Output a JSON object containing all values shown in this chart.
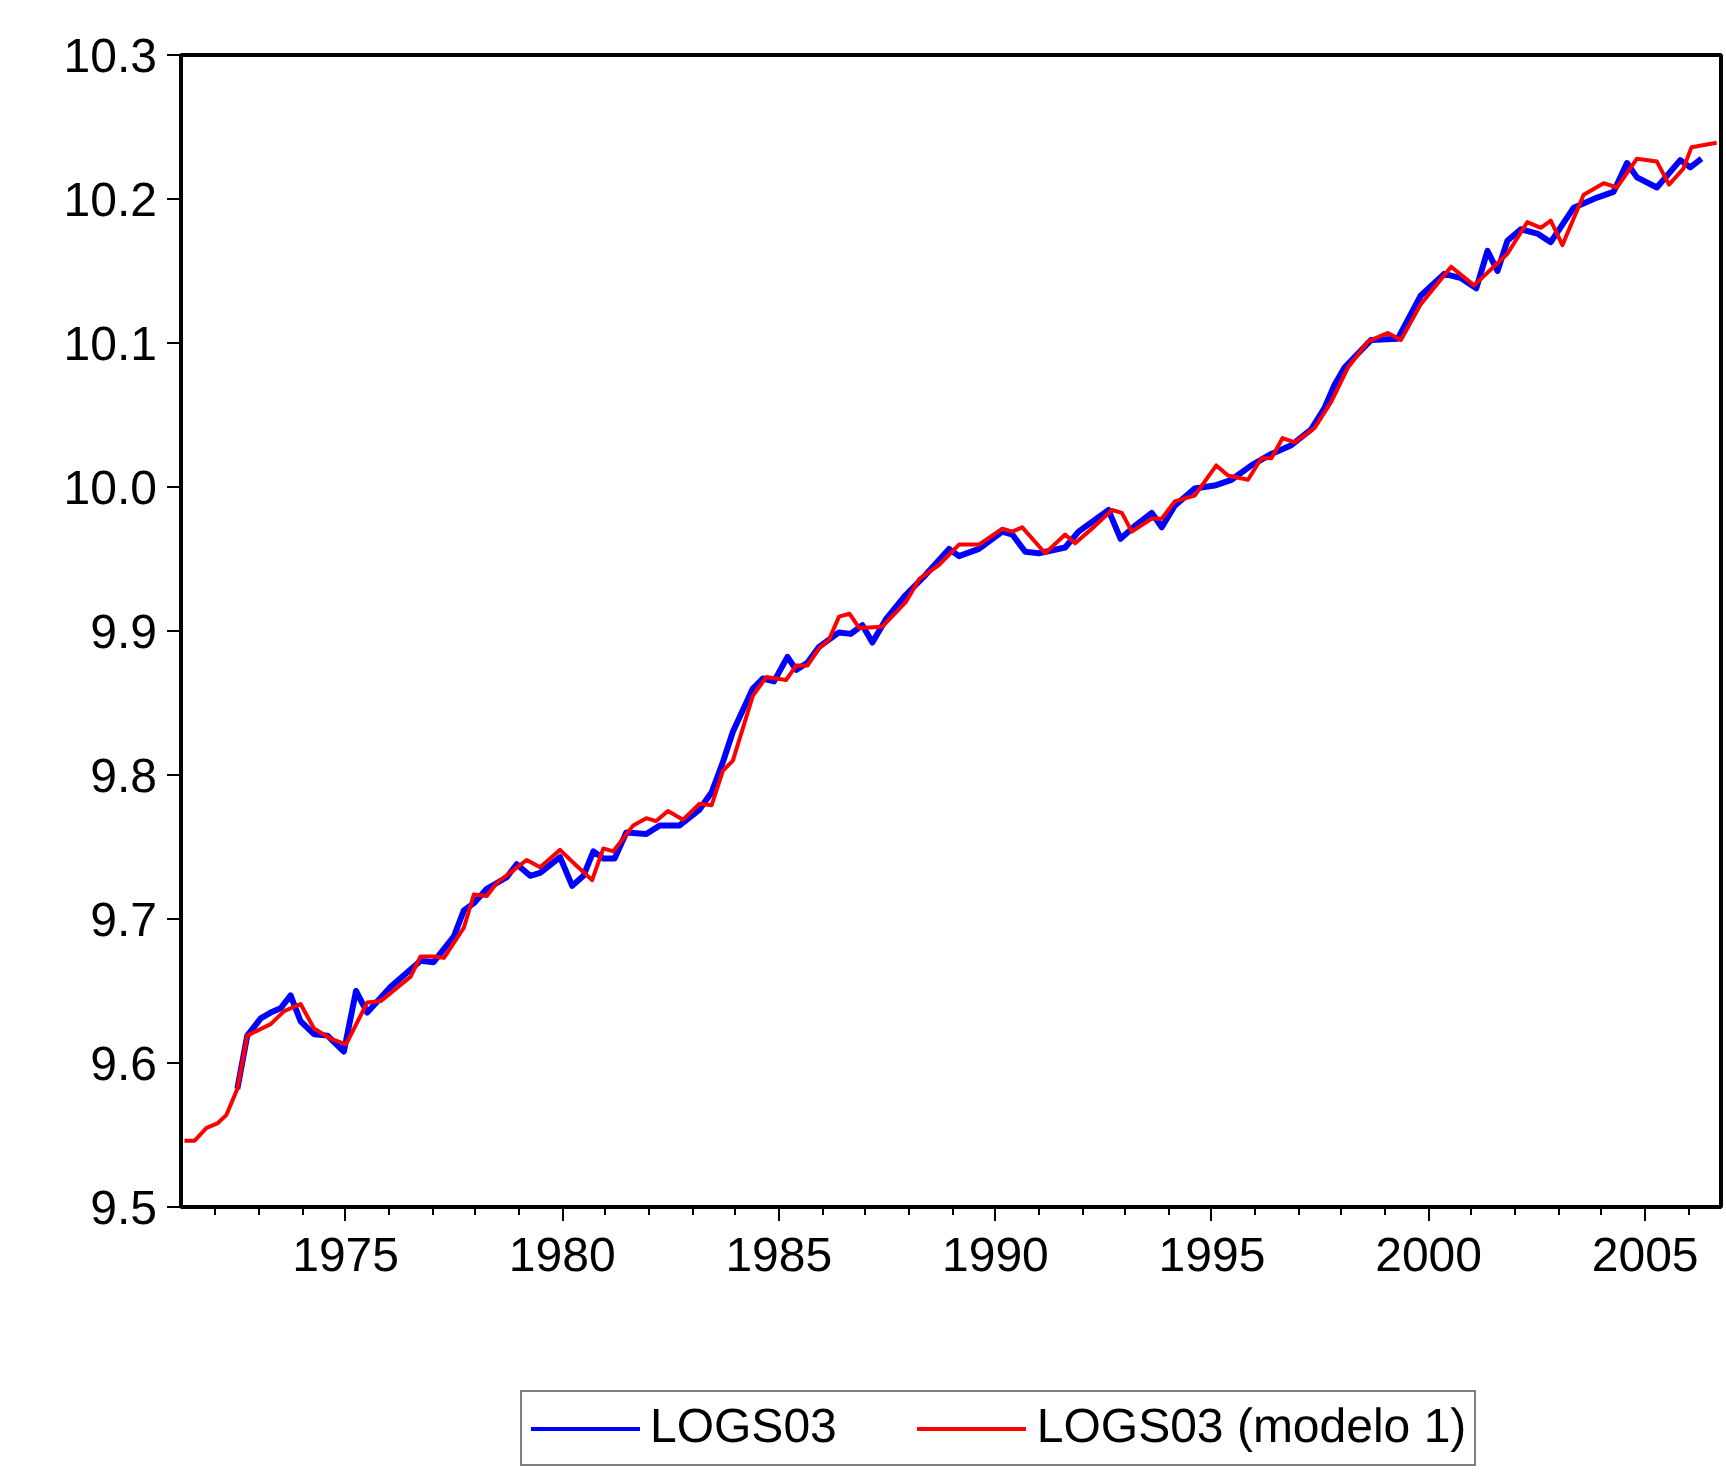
{
  "chart_data": {
    "type": "line",
    "xlim": [
      1971.2,
      2006.75
    ],
    "xticks": [
      1975,
      1980,
      1985,
      1990,
      1995,
      2000,
      2005
    ],
    "ylim": [
      9.5,
      10.3
    ],
    "yticks": [
      {
        "value": 9.5,
        "label": "9.5"
      },
      {
        "value": 9.6,
        "label": "9.6"
      },
      {
        "value": 9.7,
        "label": "9.7"
      },
      {
        "value": 9.8,
        "label": "9.8"
      },
      {
        "value": 9.9,
        "label": "9.9"
      },
      {
        "value": 10.0,
        "label": "10.0"
      },
      {
        "value": 10.1,
        "label": "10.1"
      },
      {
        "value": 10.2,
        "label": "10.2"
      },
      {
        "value": 10.3,
        "label": "10.3"
      }
    ],
    "grid": false,
    "legend": "bottom",
    "series": [
      {
        "name": "LOGS03",
        "color": "#0000ff",
        "x": [
          1972.5,
          1972.73,
          1973.04,
          1973.27,
          1973.5,
          1973.73,
          1973.96,
          1974.27,
          1974.58,
          1974.96,
          1975.24,
          1975.5,
          1976.04,
          1976.5,
          1976.73,
          1977.03,
          1977.5,
          1977.73,
          1977.96,
          1978.26,
          1978.72,
          1978.95,
          1979.26,
          1979.49,
          1979.95,
          1980.23,
          1980.49,
          1980.72,
          1980.95,
          1981.21,
          1981.48,
          1981.94,
          1982.25,
          1982.71,
          1983.17,
          1983.45,
          1983.71,
          1983.94,
          1984.4,
          1984.63,
          1984.89,
          1985.2,
          1985.4,
          1985.66,
          1985.93,
          1986.39,
          1986.66,
          1986.93,
          1987.16,
          1987.47,
          1987.93,
          1988.39,
          1988.93,
          1989.16,
          1989.62,
          1990.16,
          1990.39,
          1990.69,
          1991.0,
          1991.61,
          1991.92,
          1992.61,
          1992.89,
          1993.22,
          1993.61,
          1993.84,
          1994.14,
          1994.6,
          1995.06,
          1995.45,
          1995.91,
          1996.37,
          1996.83,
          1997.29,
          1997.6,
          1997.83,
          1998.06,
          1998.67,
          1999.29,
          1999.82,
          2000.36,
          2000.75,
          2001.1,
          2001.36,
          2001.59,
          2001.82,
          2002.13,
          2002.51,
          2002.82,
          2003.35,
          2003.89,
          2004.27,
          2004.58,
          2004.81,
          2005.27,
          2005.81,
          2006.04,
          2006.3
        ],
        "values": [
          9.582,
          9.619,
          9.631,
          9.635,
          9.638,
          9.647,
          9.629,
          9.62,
          9.619,
          9.608,
          9.65,
          9.635,
          9.653,
          9.665,
          9.671,
          9.67,
          9.688,
          9.706,
          9.711,
          9.721,
          9.729,
          9.738,
          9.73,
          9.732,
          9.743,
          9.723,
          9.73,
          9.747,
          9.742,
          9.742,
          9.76,
          9.759,
          9.765,
          9.765,
          9.776,
          9.788,
          9.809,
          9.83,
          9.86,
          9.867,
          9.865,
          9.882,
          9.873,
          9.878,
          9.889,
          9.899,
          9.898,
          9.904,
          9.892,
          9.908,
          9.925,
          9.939,
          9.957,
          9.952,
          9.957,
          9.969,
          9.967,
          9.955,
          9.954,
          9.958,
          9.969,
          9.984,
          9.964,
          9.973,
          9.982,
          9.972,
          9.987,
          9.999,
          10.001,
          10.005,
          10.015,
          10.023,
          10.029,
          10.04,
          10.055,
          10.071,
          10.083,
          10.102,
          10.103,
          10.133,
          10.148,
          10.145,
          10.138,
          10.164,
          10.15,
          10.171,
          10.179,
          10.176,
          10.17,
          10.194,
          10.201,
          10.205,
          10.225,
          10.215,
          10.208,
          10.227,
          10.222,
          10.228
        ]
      },
      {
        "name": "LOGS03 (modelo 1)",
        "color": "#ff0000",
        "x": [
          1971.28,
          1971.51,
          1971.79,
          1972.04,
          1972.25,
          1972.5,
          1972.73,
          1973.27,
          1973.58,
          1973.96,
          1974.27,
          1974.65,
          1975.01,
          1975.5,
          1975.81,
          1976.5,
          1976.73,
          1977.03,
          1977.27,
          1977.73,
          1977.96,
          1978.26,
          1978.49,
          1979.18,
          1979.49,
          1979.95,
          1980.33,
          1980.69,
          1980.95,
          1981.18,
          1981.64,
          1981.94,
          1982.17,
          1982.44,
          1982.79,
          1983.17,
          1983.45,
          1983.71,
          1983.94,
          1984.4,
          1984.71,
          1985.17,
          1985.4,
          1985.66,
          1985.93,
          1986.16,
          1986.39,
          1986.63,
          1986.86,
          1987.39,
          1987.93,
          1988.24,
          1988.7,
          1989.16,
          1989.62,
          1990.16,
          1990.39,
          1990.62,
          1991.15,
          1991.61,
          1991.84,
          1992.3,
          1992.69,
          1992.92,
          1993.15,
          1993.61,
          1993.84,
          1994.14,
          1994.6,
          1995.1,
          1995.37,
          1995.83,
          1996.14,
          1996.37,
          1996.63,
          1996.91,
          1997.37,
          1997.75,
          1998.14,
          1998.6,
          1999.06,
          1999.36,
          1999.82,
          2000.52,
          2001.05,
          2001.82,
          2002.28,
          2002.59,
          2002.82,
          2003.09,
          2003.58,
          2004.04,
          2004.35,
          2004.81,
          2005.27,
          2005.55,
          2005.88,
          2006.07,
          2006.65
        ],
        "values": [
          9.546,
          9.546,
          9.555,
          9.558,
          9.564,
          9.582,
          9.619,
          9.627,
          9.636,
          9.641,
          9.624,
          9.617,
          9.613,
          9.642,
          9.643,
          9.66,
          9.674,
          9.674,
          9.673,
          9.694,
          9.717,
          9.716,
          9.725,
          9.741,
          9.736,
          9.748,
          9.737,
          9.727,
          9.749,
          9.747,
          9.765,
          9.77,
          9.768,
          9.775,
          9.769,
          9.78,
          9.779,
          9.803,
          9.81,
          9.855,
          9.868,
          9.866,
          9.876,
          9.876,
          9.888,
          9.894,
          9.91,
          9.912,
          9.902,
          9.903,
          9.92,
          9.936,
          9.946,
          9.96,
          9.96,
          9.971,
          9.969,
          9.972,
          9.954,
          9.967,
          9.961,
          9.973,
          9.984,
          9.982,
          9.969,
          9.978,
          9.978,
          9.99,
          9.994,
          10.015,
          10.008,
          10.005,
          10.02,
          10.02,
          10.034,
          10.031,
          10.041,
          10.059,
          10.083,
          10.101,
          10.107,
          10.102,
          10.127,
          10.153,
          10.14,
          10.162,
          10.184,
          10.18,
          10.185,
          10.168,
          10.203,
          10.211,
          10.208,
          10.228,
          10.226,
          10.21,
          10.221,
          10.236,
          10.239
        ]
      }
    ]
  }
}
